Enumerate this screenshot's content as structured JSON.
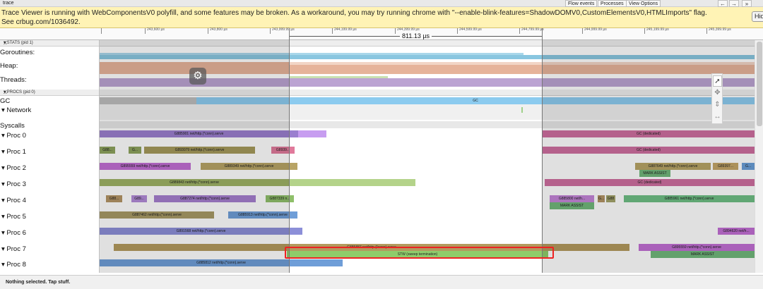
{
  "window": {
    "title": "trace"
  },
  "toolbar": {
    "flow_events": "Flow events",
    "processes": "Processes",
    "view_options": "View Options",
    "back": "←",
    "forward": "→",
    "more": "»"
  },
  "warning": {
    "message": "Trace Viewer is running with WebComponentsV0 polyfill, and some features may be broken. As a workaround, you may try running chrome with \"--enable-blink-features=ShadowDOMV0,CustomElementsV0,HTMLImports\" flag. See crbug.com/1036492.",
    "hide_label": "Hide"
  },
  "ruler": {
    "ticks": [
      "243,600 µs",
      "243,800 µs",
      "243,999.99 µs",
      "244,199.99 µs",
      "244,399.99 µs",
      "244,599.99 µs",
      "244,799.99 µs",
      "244,999.99 µs",
      "245,199.99 µs",
      "245,399.99 µs"
    ],
    "selection_label": "811.13 µs"
  },
  "stats": {
    "header": "▾ STATS (pid 1)",
    "close": "X",
    "rows": [
      "Goroutines:",
      "Heap:",
      "Threads:"
    ]
  },
  "procs": {
    "header": "▾ PROCS (pid 0)",
    "close": "X",
    "gc_label": "GC",
    "network_label": "▾  Network",
    "syscalls_label": "Syscalls",
    "rows": [
      {
        "label": "▾  Proc 0",
        "slices": [
          {
            "text": "G885901 net/http.(*conn).serve",
            "color": "#9b7fcf"
          },
          {
            "text": "",
            "color": "#c79df0"
          },
          {
            "text": "GC (dedicated)",
            "color": "#cf6fa0"
          }
        ]
      },
      {
        "label": "▾  Proc 1",
        "slices": [
          {
            "text": "G88...",
            "color": "#8ea35e"
          },
          {
            "text": "G...",
            "color": "#8ea35e"
          },
          {
            "text": "G893079 net/http.(*conn).serve",
            "color": "#a69a5c"
          },
          {
            "text": "G8939...",
            "color": "#e07a9b"
          },
          {
            "text": "GC (dedicated)",
            "color": "#cf6fa0"
          }
        ]
      },
      {
        "label": "▾  Proc 2",
        "slices": [
          {
            "text": "G895559 net/http.(*conn).serve",
            "color": "#c26fd4"
          },
          {
            "text": "G889349 net/http.(*conn).serve",
            "color": "#b8a466"
          },
          {
            "text": "G887649 net/http.(*conn).serve",
            "color": "#b8a466"
          },
          {
            "text": "G89397...",
            "color": "#c4a668"
          },
          {
            "text": "G...",
            "color": "#6a9fd8"
          },
          {
            "text": "MARK ASSIST",
            "color": "#71b87c"
          }
        ]
      },
      {
        "label": "▾  Proc 3",
        "slices": [
          {
            "text": "G889843 net/http.(*conn).serve",
            "color": "#9fb366"
          },
          {
            "text": "",
            "color": "#b4d38a"
          },
          {
            "text": "GC (dedicated)",
            "color": "#cf6fa0"
          }
        ]
      },
      {
        "label": "▾  Proc 4",
        "slices": [
          {
            "text": "G88...",
            "color": "#b39466"
          },
          {
            "text": "G89...",
            "color": "#b28bd8"
          },
          {
            "text": "G887274 net/http.(*conn).serve",
            "color": "#a67fcf"
          },
          {
            "text": "G887339 n...",
            "color": "#8fbf6a"
          },
          {
            "text": "G885800 net/h...",
            "color": "#c485d8"
          },
          {
            "text": "G...",
            "color": "#b39466"
          },
          {
            "text": "G88",
            "color": "#a3a36a"
          },
          {
            "text": "G885961 net/http.(*conn).serve",
            "color": "#6fbf84"
          },
          {
            "text": "MARK ASSIST",
            "color": "#71b87c"
          }
        ]
      },
      {
        "label": "▾  Proc 5",
        "slices": [
          {
            "text": "G887462 net/http.(*conn).serve",
            "color": "#a89a66"
          },
          {
            "text": "G885913 net/http.(*conn).serve",
            "color": "#6f9ed8"
          }
        ]
      },
      {
        "label": "▾  Proc 6",
        "slices": [
          {
            "text": "G891568 net/http.(*conn).serve",
            "color": "#8c8fd8"
          },
          {
            "text": "G894620 net/h...",
            "color": "#c26fd4"
          }
        ]
      },
      {
        "label": "▾  Proc 7",
        "slices": [
          {
            "text": "G885887 net/http.(*conn).serve",
            "color": "#b39a5e"
          },
          {
            "text": "STW (sweep termination)",
            "color": "#8fcc6a"
          },
          {
            "text": "G895559 net/http.(*conn).serve",
            "color": "#c26fd4"
          },
          {
            "text": "MARK ASSIST",
            "color": "#71b87c"
          }
        ]
      },
      {
        "label": "▾  Proc 8",
        "slices": [
          {
            "text": "G885812 net/http.(*conn).serve",
            "color": "#6f9ed8"
          }
        ]
      }
    ],
    "gc_slice": "GC"
  },
  "status": {
    "text": "Nothing selected. Tap stuff."
  },
  "icons": {
    "gear": "gear-icon",
    "pointer": "pointer-tool-icon",
    "pan": "pan-tool-icon",
    "zoom": "zoom-tool-icon",
    "timing": "timing-tool-icon"
  }
}
